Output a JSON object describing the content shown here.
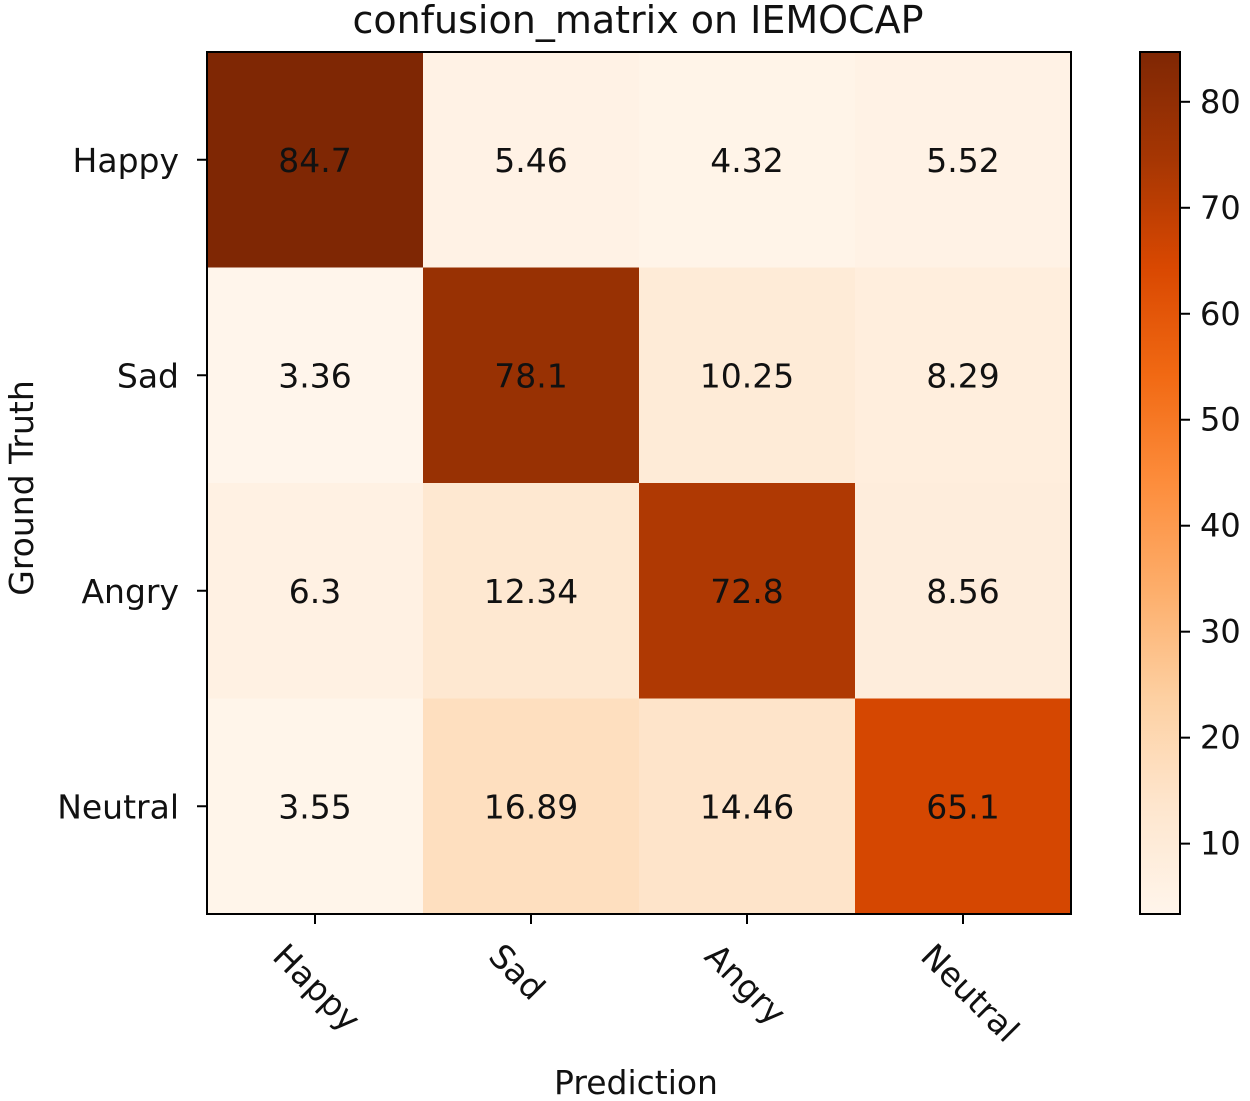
{
  "chart_data": {
    "type": "heatmap",
    "title": "confusion_matrix on IEMOCAP",
    "xlabel": "Prediction",
    "ylabel": "Ground Truth",
    "x_categories": [
      "Happy",
      "Sad",
      "Angry",
      "Neutral"
    ],
    "y_categories": [
      "Happy",
      "Sad",
      "Angry",
      "Neutral"
    ],
    "values": [
      [
        84.7,
        5.46,
        4.32,
        5.52
      ],
      [
        3.36,
        78.1,
        10.25,
        8.29
      ],
      [
        6.3,
        12.34,
        72.8,
        8.56
      ],
      [
        3.55,
        16.89,
        14.46,
        65.1
      ]
    ],
    "cell_labels": [
      [
        "84.7",
        "5.46",
        "4.32",
        "5.52"
      ],
      [
        "3.36",
        "78.1",
        "10.25",
        "8.29"
      ],
      [
        "6.3",
        "12.34",
        "72.8",
        "8.56"
      ],
      [
        "3.55",
        "16.89",
        "14.46",
        "65.1"
      ]
    ],
    "colormap": "Oranges",
    "colormap_stops": [
      "#fff5eb",
      "#fee6ce",
      "#fdd0a2",
      "#fdae6b",
      "#fd8d3c",
      "#f16913",
      "#d94801",
      "#a63603",
      "#7f2704"
    ],
    "colorbar": {
      "range": [
        3.36,
        84.7
      ],
      "ticks": [
        10,
        20,
        30,
        40,
        50,
        60,
        70,
        80
      ],
      "tick_labels": [
        "10",
        "20",
        "30",
        "40",
        "50",
        "60",
        "70",
        "80"
      ]
    }
  }
}
